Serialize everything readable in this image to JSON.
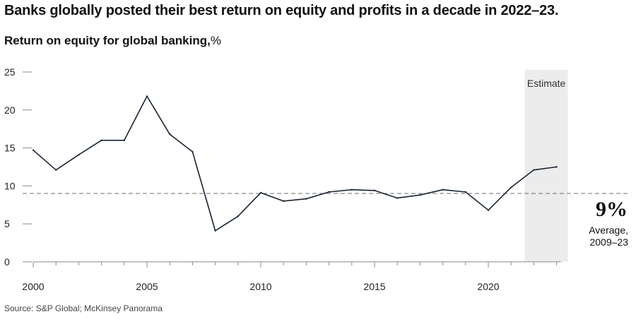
{
  "header": {
    "title": "Banks globally posted their best return on equity and profits in a decade in 2022–23.",
    "subtitle_main": "Return on equity for global banking,",
    "subtitle_unit": "%"
  },
  "annotation": {
    "estimate_label": "Estimate",
    "average_value": "9%",
    "average_label": "Average,\n2009–23"
  },
  "source": "Source: S&P Global; McKinsey Panorama",
  "colors": {
    "line": "#1a2433",
    "estimate_band": "#ececec",
    "average_line": "#888888",
    "axis": "#888888"
  },
  "chart_data": {
    "type": "line",
    "title": "Return on equity for global banking, %",
    "xlabel": "",
    "ylabel": "",
    "x": [
      2000,
      2001,
      2002,
      2003,
      2004,
      2005,
      2006,
      2007,
      2008,
      2009,
      2010,
      2011,
      2012,
      2013,
      2014,
      2015,
      2016,
      2017,
      2018,
      2019,
      2020,
      2021,
      2022,
      2023
    ],
    "series": [
      {
        "values": [
          14.7,
          12.1,
          14.1,
          16.0,
          16.0,
          21.8,
          16.8,
          14.5,
          4.1,
          6.0,
          9.1,
          8.0,
          8.3,
          9.2,
          9.5,
          9.4,
          8.4,
          8.8,
          9.5,
          9.2,
          6.8,
          9.8,
          12.1,
          12.5
        ]
      }
    ],
    "xlim": [
      2000,
      2023
    ],
    "ylim": [
      0,
      25
    ],
    "x_ticks": [
      2000,
      2005,
      2010,
      2015,
      2020
    ],
    "x_tick_labels": [
      "2000",
      "2005",
      "2010",
      "2015",
      "2020"
    ],
    "y_ticks": [
      0,
      5,
      10,
      15,
      20,
      25
    ],
    "y_tick_labels": [
      "0",
      "5",
      "10",
      "15",
      "20",
      "25"
    ],
    "average_line_value": 9,
    "estimate_range": [
      2021.6,
      2023.5
    ],
    "grid": false
  }
}
